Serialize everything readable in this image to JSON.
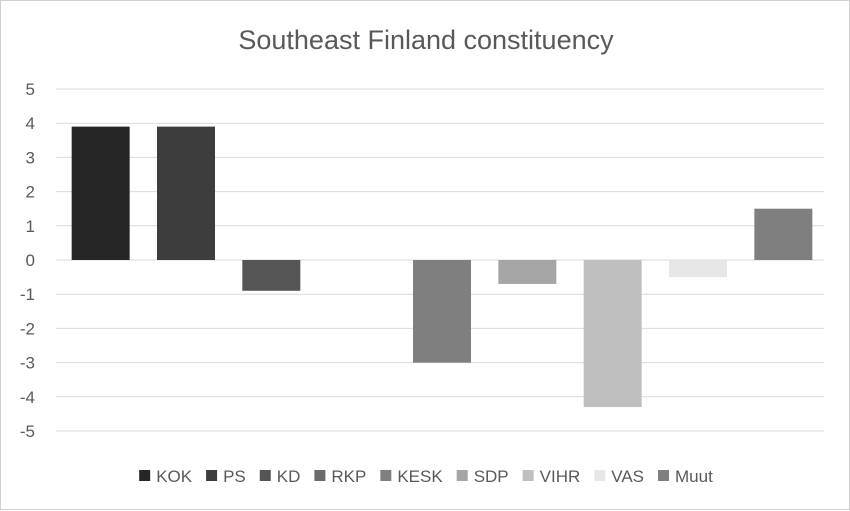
{
  "chart_data": {
    "type": "bar",
    "title": "Southeast Finland constituency",
    "xlabel": "",
    "ylabel": "",
    "ylim": [
      -5,
      5
    ],
    "yticks": [
      5,
      4,
      3,
      2,
      1,
      0,
      -1,
      -2,
      -3,
      -4,
      -5
    ],
    "grid": true,
    "legend_position": "bottom",
    "series": [
      {
        "name": "KOK",
        "value": 3.9,
        "color": "#262626"
      },
      {
        "name": "PS",
        "value": 3.9,
        "color": "#3d3d3d"
      },
      {
        "name": "KD",
        "value": -0.9,
        "color": "#555555"
      },
      {
        "name": "RKP",
        "value": 0,
        "color": "#6c6c6c"
      },
      {
        "name": "KESK",
        "value": -3.0,
        "color": "#7f7f7f"
      },
      {
        "name": "SDP",
        "value": -0.7,
        "color": "#a5a5a5"
      },
      {
        "name": "VIHR",
        "value": -4.3,
        "color": "#bfbfbf"
      },
      {
        "name": "VAS",
        "value": -0.5,
        "color": "#e7e7e7"
      },
      {
        "name": "Muut",
        "value": 1.5,
        "color": "#7f7f7f"
      }
    ]
  }
}
